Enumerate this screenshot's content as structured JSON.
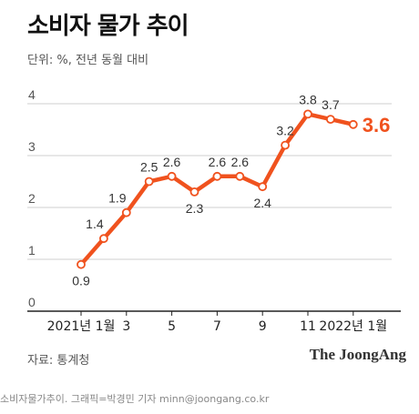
{
  "header": {
    "title": "소비자 물가 추이",
    "unit": "단위: %, 전년 동월 대비"
  },
  "footer": {
    "source": "자료: 통계청",
    "brand": "The JoongAng",
    "credit": "소비자물가추이. 그래픽=박경민 기자 minn@joongang.co.kr"
  },
  "colors": {
    "line": "#F0521E",
    "grid": "#cfcfcf",
    "axis": "#222222"
  },
  "chart_data": {
    "type": "line",
    "title": "소비자 물가 추이",
    "ylabel": "단위: %, 전년 동월 대비",
    "ylim": [
      0,
      4
    ],
    "yticks": [
      "0",
      "1",
      "2",
      "3",
      "4"
    ],
    "grid": true,
    "x": [
      "2021-01",
      "2021-02",
      "2021-03",
      "2021-04",
      "2021-05",
      "2021-06",
      "2021-07",
      "2021-08",
      "2021-09",
      "2021-10",
      "2021-11",
      "2021-12",
      "2022-01"
    ],
    "xtick_labels": [
      {
        "index": 0,
        "label": "2021년 1월"
      },
      {
        "index": 2,
        "label": "3"
      },
      {
        "index": 4,
        "label": "5"
      },
      {
        "index": 6,
        "label": "7"
      },
      {
        "index": 8,
        "label": "9"
      },
      {
        "index": 10,
        "label": "11"
      },
      {
        "index": 12,
        "label": "2022년 1월"
      }
    ],
    "series": [
      {
        "values": [
          0.9,
          1.4,
          1.9,
          2.5,
          2.6,
          2.3,
          2.6,
          2.6,
          2.4,
          3.2,
          3.8,
          3.7,
          3.6
        ],
        "labels": [
          "0.9",
          "1.4",
          "1.9",
          "2.5",
          "2.6",
          "2.3",
          "2.6",
          "2.6",
          "2.4",
          "3.2",
          "3.8",
          "3.7",
          "3.6"
        ]
      }
    ]
  }
}
